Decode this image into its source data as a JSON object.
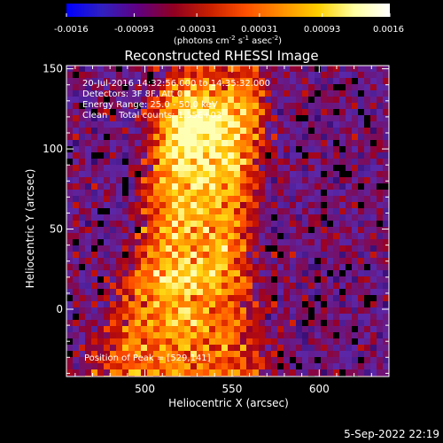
{
  "chart_data": {
    "type": "heatmap",
    "title": "Reconstructed RHESSI Image",
    "xlabel": "Heliocentric X (arcsec)",
    "ylabel": "Heliocentric Y (arcsec)",
    "xlim": [
      455,
      640
    ],
    "ylim": [
      -42,
      152
    ],
    "x_ticks": [
      500,
      550,
      600
    ],
    "y_ticks": [
      0,
      50,
      100,
      150
    ],
    "colorbar": {
      "vmin": -0.0016,
      "vmax": 0.0016,
      "tick_values": [
        -0.0016,
        -0.00093,
        -0.00031,
        0.00031,
        0.00093,
        0.0016
      ],
      "tick_labels": [
        "-0.0016",
        "-0.00093",
        "-0.00031",
        "0.00031",
        "0.00093",
        "0.0016"
      ],
      "unit_prefix": "(photons cm",
      "unit_exp1": "-2",
      "unit_mid1": " s",
      "unit_exp2": "-1",
      "unit_mid2": " asec",
      "unit_exp3": "-2",
      "unit_suffix": ")",
      "colormap": [
        "#0000ff",
        "#3020c0",
        "#600080",
        "#900020",
        "#c82000",
        "#ff5000",
        "#ff9000",
        "#ffd000",
        "#ffffa0",
        "#ffffff"
      ]
    },
    "info_lines": [
      "20-Jul-2016 14:32:56.000 to 14:35:32.000",
      "Detectors: 3F 8F, Att 0",
      "Energy Range: 25.0 - 50.0 keV",
      "Clean    Total counts: 1.55E+03"
    ],
    "peak_label": "Position of Peak = [529,141]",
    "peak_position": [
      529,
      141
    ],
    "image_description": "CLEAN reconstruction: bright emission (yellow-white) concentrated in a vertical band around X=515-560, upper part brightest near Y=100-141; blotchy purple/red background elsewhere with dark holes."
  },
  "footer": {
    "timestamp": "5-Sep-2022 22:19"
  }
}
